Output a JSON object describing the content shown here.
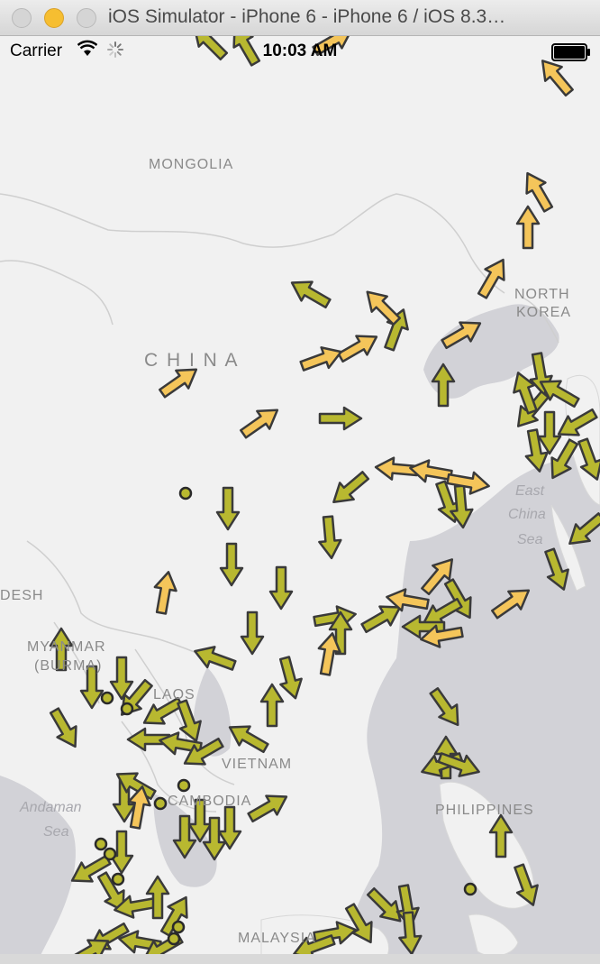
{
  "window": {
    "title": "iOS Simulator - iPhone 6 - iPhone 6 / iOS 8.3…"
  },
  "status_bar": {
    "carrier": "Carrier",
    "time": "10:03 AM"
  },
  "map": {
    "labels": {
      "mongolia": "MONGOLIA",
      "china": "C H I N A",
      "north_korea_1": "NORTH",
      "north_korea_2": "KOREA",
      "east_china_sea_1": "East",
      "east_china_sea_2": "China",
      "east_china_sea_3": "Sea",
      "bangladesh": "DESH",
      "myanmar_1": "MYANMAR",
      "myanmar_2": "(BURMA)",
      "laos": "LAOS",
      "vietnam": "VIETNAM",
      "cambodia": "CAMBODIA",
      "andaman_sea_1": "Andaman",
      "andaman_sea_2": "Sea",
      "philippines": "PHILIPPINES",
      "malaysia": "MALAYSIA"
    },
    "colors": {
      "land": "#f1f1f1",
      "water": "#d2d2d7",
      "border": "#cfcfcf",
      "arrow_olive": "#b8b830",
      "arrow_gold": "#f4c55a",
      "outline": "#3a3a3a"
    }
  }
}
